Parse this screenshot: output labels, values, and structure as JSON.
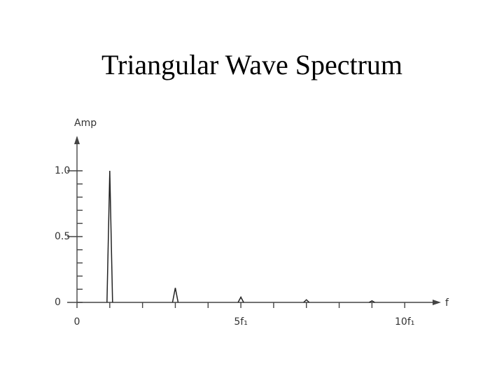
{
  "chart_data": {
    "type": "spectrum",
    "title": "Triangular Wave Spectrum",
    "y_label": "Amp",
    "x_label": "f",
    "x": [
      1,
      3,
      5,
      7,
      9
    ],
    "values": [
      1.0,
      0.11,
      0.04,
      0.02,
      0.012
    ],
    "color": "#222222",
    "xlim": [
      0,
      11
    ],
    "ylim": [
      0,
      1.25
    ],
    "xticks": [
      0,
      {
        "value": 5,
        "label": "5f₁"
      },
      {
        "value": 10,
        "label": "10f₁"
      }
    ],
    "xminorticks": [
      1,
      2,
      3,
      4,
      6,
      7,
      8,
      9
    ],
    "yticks": [
      {
        "value": 1,
        "label": "1.0"
      },
      0.5,
      0
    ],
    "yminorticks": [
      0.1,
      0.2,
      0.3,
      0.4,
      0.6,
      0.7,
      0.8,
      0.9
    ]
  }
}
